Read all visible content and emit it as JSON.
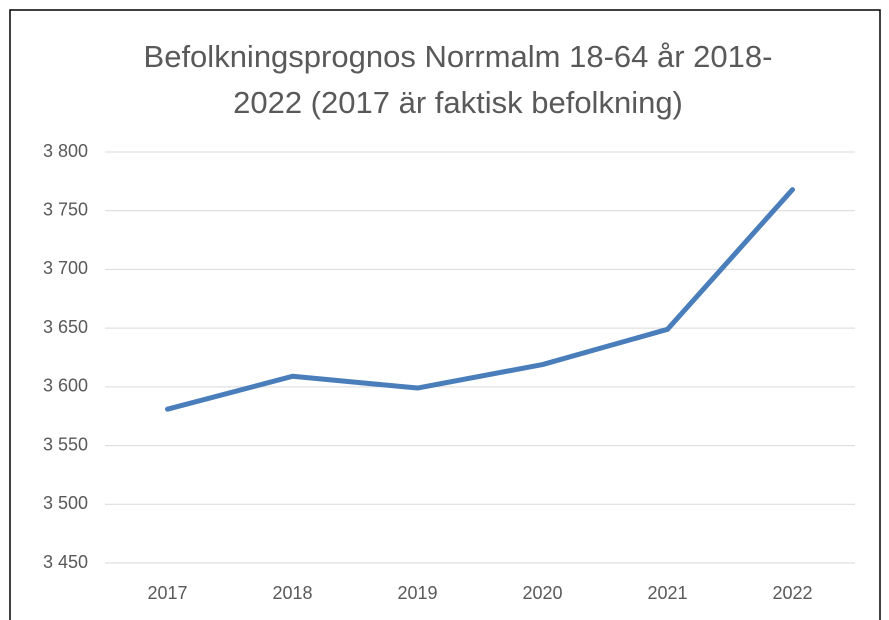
{
  "chart_data": {
    "type": "line",
    "title": "Befolkningsprognos Norrmalm 18-64 år 2018-2022 (2017 är faktisk befolkning)",
    "categories": [
      "2017",
      "2018",
      "2019",
      "2020",
      "2021",
      "2022"
    ],
    "series": [
      {
        "name": "Norrmalm 18-64 år",
        "color": "#4a7ebb",
        "values": [
          3581,
          3609,
          3599,
          3619,
          3649,
          3768
        ]
      }
    ],
    "ylim": [
      3450,
      3800
    ],
    "yticks": [
      {
        "value": 3450,
        "label": "3 450"
      },
      {
        "value": 3500,
        "label": "3 500"
      },
      {
        "value": 3550,
        "label": "3 550"
      },
      {
        "value": 3600,
        "label": "3 600"
      },
      {
        "value": 3650,
        "label": "3 650"
      },
      {
        "value": 3700,
        "label": "3 700"
      },
      {
        "value": 3750,
        "label": "3 750"
      },
      {
        "value": 3800,
        "label": "3 800"
      }
    ],
    "grid": true
  }
}
